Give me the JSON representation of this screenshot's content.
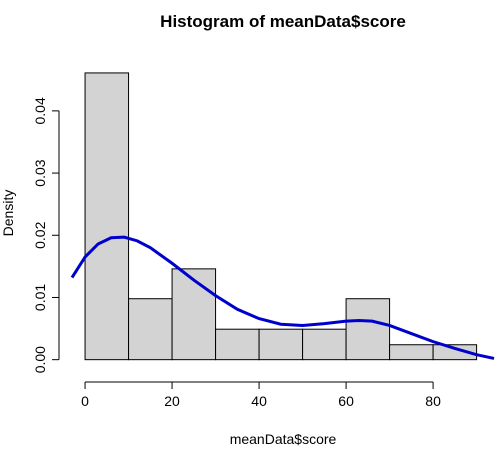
{
  "chart_data": {
    "type": "bar",
    "title": "Histogram of meanData$score",
    "xlabel": "meanData$score",
    "ylabel": "Density",
    "xlim": [
      -3,
      94
    ],
    "ylim": [
      -0.0015,
      0.0485
    ],
    "x_ticks": [
      0,
      20,
      40,
      60,
      80
    ],
    "y_ticks": [
      0.0,
      0.01,
      0.02,
      0.03,
      0.04
    ],
    "y_tick_labels": [
      "0.00",
      "0.01",
      "0.02",
      "0.03",
      "0.04"
    ],
    "bins": [
      {
        "start": 0,
        "end": 10,
        "density": 0.0461
      },
      {
        "start": 10,
        "end": 20,
        "density": 0.0098
      },
      {
        "start": 20,
        "end": 30,
        "density": 0.0146
      },
      {
        "start": 30,
        "end": 40,
        "density": 0.0049
      },
      {
        "start": 40,
        "end": 50,
        "density": 0.0049
      },
      {
        "start": 50,
        "end": 60,
        "density": 0.0049
      },
      {
        "start": 60,
        "end": 70,
        "density": 0.0098
      },
      {
        "start": 70,
        "end": 80,
        "density": 0.0024
      },
      {
        "start": 80,
        "end": 90,
        "density": 0.0024
      }
    ],
    "density_curve": {
      "x": [
        -3,
        0,
        3,
        6,
        9,
        12,
        15,
        20,
        25,
        30,
        35,
        40,
        45,
        50,
        55,
        60,
        63,
        66,
        70,
        75,
        80,
        85,
        90,
        94
      ],
      "y": [
        0.0132,
        0.0165,
        0.0186,
        0.0196,
        0.0197,
        0.0191,
        0.018,
        0.0155,
        0.0128,
        0.0103,
        0.0081,
        0.0066,
        0.0057,
        0.0055,
        0.0058,
        0.0062,
        0.0063,
        0.0062,
        0.0055,
        0.0042,
        0.0029,
        0.0018,
        0.0008,
        0.0002
      ]
    },
    "colors": {
      "bar_fill": "#d3d3d3",
      "bar_stroke": "#000000",
      "density_line": "#0000cd"
    },
    "grid": false
  }
}
